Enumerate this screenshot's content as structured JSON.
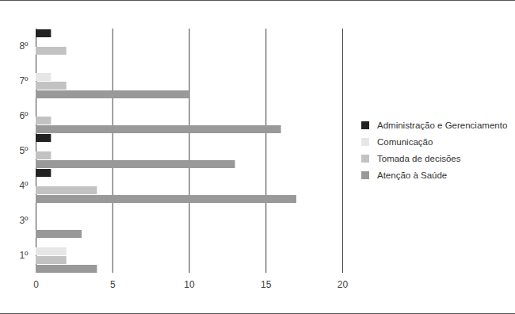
{
  "chart_data": {
    "type": "bar",
    "orientation": "horizontal",
    "categories": [
      "8º",
      "7º",
      "6º",
      "5º",
      "4º",
      "3º",
      "1º"
    ],
    "series": [
      {
        "name": "Administração e Gerenciamento",
        "color": "#222222",
        "values": [
          1,
          0,
          0,
          1,
          1,
          0,
          0
        ]
      },
      {
        "name": "Comunicação",
        "color": "#e6e6e6",
        "values": [
          0,
          1,
          0,
          0,
          0,
          0,
          2
        ]
      },
      {
        "name": "Tomada de decisões",
        "color": "#c2c2c2",
        "values": [
          2,
          2,
          1,
          1,
          4,
          0,
          2
        ]
      },
      {
        "name": "Atenção à Saúde",
        "color": "#999999",
        "values": [
          0,
          10,
          16,
          13,
          17,
          3,
          4
        ]
      }
    ],
    "xlim": [
      0,
      20
    ],
    "xticks": [
      0,
      5,
      10,
      15,
      20
    ],
    "grid": true,
    "legend": "right"
  }
}
